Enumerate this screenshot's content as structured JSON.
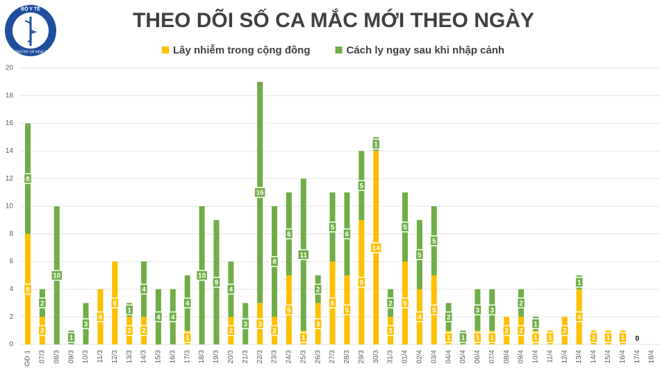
{
  "logo": {
    "top": "BỘ Y TẾ",
    "bottom": "MINISTRY OF HEALTH"
  },
  "chart_data": {
    "type": "stacked-bar",
    "title": "THEO DÕI SỐ CA MẮC MỚI THEO NGÀY",
    "categories": [
      "GĐ 1",
      "07/3",
      "08/3",
      "09/3",
      "10/3",
      "11/3",
      "12/3",
      "13/3",
      "14/3",
      "15/3",
      "16/3",
      "17/3",
      "18/3",
      "19/3",
      "20/3",
      "21/3",
      "22/3",
      "23/3",
      "24/3",
      "25/3",
      "26/3",
      "27/3",
      "28/3",
      "29/3",
      "30/3",
      "31/3",
      "01/4",
      "02/4",
      "03/4",
      "04/4",
      "05/4",
      "06/4",
      "07/4",
      "08/4",
      "09/4",
      "10/4",
      "11/4",
      "12/4",
      "13/4",
      "14/4",
      "15/4",
      "16/4",
      "17/4",
      "18/4"
    ],
    "series": [
      {
        "name": "Lây nhiễm trong cộng đồng",
        "color": "#ffc000",
        "values": [
          8,
          2,
          null,
          null,
          null,
          4,
          6,
          2,
          2,
          null,
          null,
          1,
          null,
          null,
          2,
          null,
          3,
          2,
          5,
          1,
          3,
          6,
          5,
          9,
          14,
          2,
          6,
          4,
          5,
          1,
          null,
          1,
          1,
          2,
          2,
          1,
          1,
          2,
          4,
          1,
          1,
          1,
          0,
          null
        ]
      },
      {
        "name": "Cách ly ngay sau khi nhập cảnh",
        "color": "#70ad47",
        "values": [
          8,
          2,
          10,
          1,
          3,
          null,
          null,
          1,
          4,
          4,
          4,
          4,
          10,
          9,
          4,
          3,
          16,
          8,
          6,
          11,
          2,
          5,
          6,
          5,
          1,
          2,
          5,
          5,
          5,
          2,
          1,
          3,
          3,
          null,
          2,
          1,
          null,
          null,
          1,
          null,
          null,
          null,
          null,
          null
        ]
      }
    ],
    "ylim": [
      0,
      20
    ],
    "yticks": [
      0,
      2,
      4,
      6,
      8,
      10,
      12,
      14,
      16,
      18,
      20
    ],
    "grid": true
  }
}
